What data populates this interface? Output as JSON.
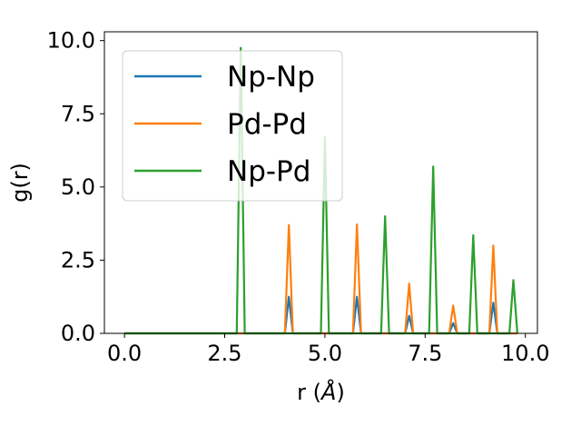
{
  "chart_data": {
    "type": "line",
    "title": "",
    "xlabel_prefix": "r (",
    "xlabel_unit": "Å",
    "xlabel_suffix": ")",
    "ylabel": "g(r)",
    "xlim": [
      -0.5,
      10.3
    ],
    "ylim": [
      0,
      10.3
    ],
    "xticks": [
      0.0,
      2.5,
      5.0,
      7.5,
      10.0
    ],
    "xtick_labels": [
      "0.0",
      "2.5",
      "5.0",
      "7.5",
      "10.0"
    ],
    "yticks": [
      0.0,
      2.5,
      5.0,
      7.5,
      10.0
    ],
    "ytick_labels": [
      "0.0",
      "2.5",
      "5.0",
      "7.5",
      "10.0"
    ],
    "grid": false,
    "legend_placement": "upper-left",
    "series": [
      {
        "name": "Np-Np",
        "color": "#1f77b4",
        "x": [
          0.0,
          4.0,
          4.1,
          4.2,
          5.7,
          5.8,
          5.9,
          7.0,
          7.1,
          7.2,
          8.1,
          8.2,
          8.3,
          9.1,
          9.2,
          9.3,
          9.8
        ],
        "y": [
          0.0,
          0.0,
          1.25,
          0.0,
          0.0,
          1.25,
          0.0,
          0.0,
          0.6,
          0.0,
          0.0,
          0.35,
          0.0,
          0.0,
          1.05,
          0.0,
          0.0
        ]
      },
      {
        "name": "Pd-Pd",
        "color": "#ff7f0e",
        "x": [
          0.0,
          4.0,
          4.1,
          4.2,
          5.7,
          5.8,
          5.9,
          7.0,
          7.1,
          7.2,
          8.1,
          8.2,
          8.3,
          9.1,
          9.2,
          9.3,
          9.8
        ],
        "y": [
          0.0,
          0.0,
          3.7,
          0.0,
          0.0,
          3.72,
          0.0,
          0.0,
          1.7,
          0.0,
          0.0,
          0.95,
          0.0,
          0.0,
          3.0,
          0.0,
          0.0
        ]
      },
      {
        "name": "Np-Pd",
        "color": "#2ca02c",
        "x": [
          0.0,
          2.8,
          2.9,
          3.0,
          4.9,
          5.0,
          5.1,
          6.4,
          6.5,
          6.6,
          7.6,
          7.7,
          7.8,
          8.6,
          8.7,
          8.8,
          9.6,
          9.7,
          9.8
        ],
        "y": [
          0.0,
          0.0,
          9.75,
          0.0,
          0.0,
          6.7,
          0.0,
          0.0,
          4.0,
          0.0,
          0.0,
          5.7,
          0.0,
          0.0,
          3.35,
          0.0,
          0.0,
          1.82,
          0.0
        ]
      }
    ]
  }
}
